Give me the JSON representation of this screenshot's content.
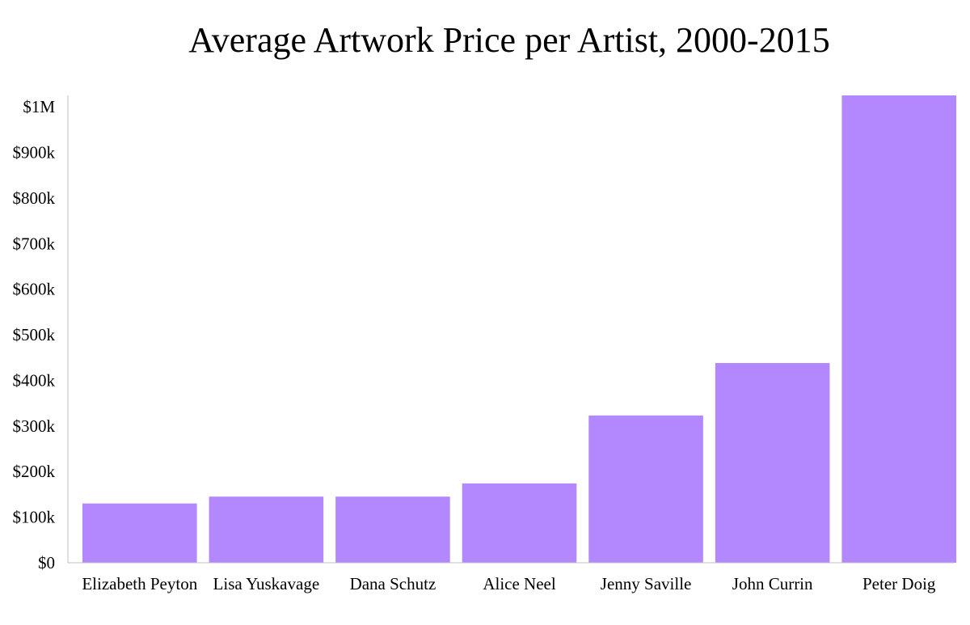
{
  "chart_data": {
    "type": "bar",
    "title": "Average Artwork Price per Artist, 2000-2015",
    "xlabel": "",
    "ylabel": "",
    "categories": [
      "Elizabeth Peyton",
      "Lisa Yuskavage",
      "Dana Schutz",
      "Alice Neel",
      "Jenny Saville",
      "John Currin",
      "Peter Doig"
    ],
    "values": [
      130000,
      145000,
      145000,
      174000,
      323000,
      438000,
      1025000
    ],
    "ylim": [
      0,
      1025000
    ],
    "yticks": [
      0,
      100000,
      200000,
      300000,
      400000,
      500000,
      600000,
      700000,
      800000,
      900000,
      1000000
    ],
    "ytick_labels": [
      "$0",
      "$100k",
      "$200k",
      "$300k",
      "$400k",
      "$500k",
      "$600k",
      "$700k",
      "$800k",
      "$900k",
      "$1M"
    ],
    "bar_color": "#b388ff",
    "grid": false,
    "legend": "none"
  }
}
